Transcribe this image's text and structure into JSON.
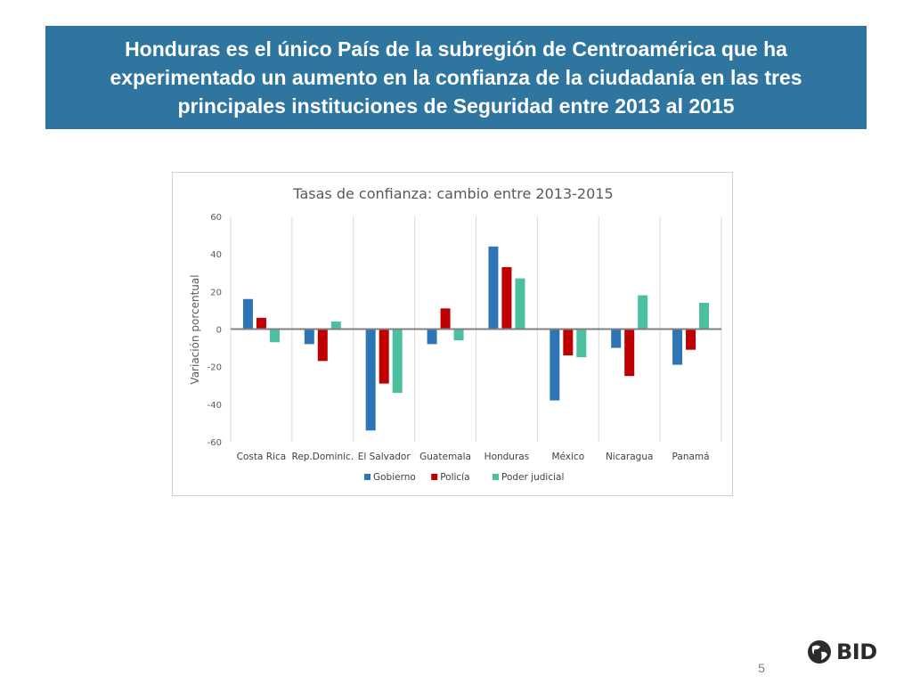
{
  "slide": {
    "title": "Honduras es el único País de la subregión de Centroamérica que ha experimentado un aumento en la confianza de la ciudadanía en las tres principales instituciones de Seguridad entre 2013 al 2015",
    "page_number": "5",
    "logo_text": "BID",
    "banner_color": "#2e75a0"
  },
  "chart_data": {
    "type": "bar",
    "title": "Tasas de confianza: cambio entre 2013-2015",
    "xlabel": "",
    "ylabel": "Variación porcentual",
    "ylim": [
      -60,
      60
    ],
    "yticks": [
      60,
      40,
      20,
      0,
      -20,
      -40,
      -60
    ],
    "grid": "vertical category separators",
    "legend": "bottom",
    "categories": [
      "Costa Rica",
      "Rep.Dominic.",
      "El Salvador",
      "Guatemala",
      "Honduras",
      "México",
      "Nicaragua",
      "Panamá"
    ],
    "series": [
      {
        "name": "Gobierno",
        "color": "#2e75b6",
        "values": [
          16,
          -8,
          -54,
          -8,
          44,
          -38,
          -10,
          -19
        ]
      },
      {
        "name": "Policía",
        "color": "#c00000",
        "values": [
          6,
          -17,
          -29,
          11,
          33,
          -14,
          -25,
          -11
        ]
      },
      {
        "name": "Poder judicial",
        "color": "#4bbfa0",
        "values": [
          -7,
          4,
          -34,
          -6,
          27,
          -15,
          18,
          14
        ]
      }
    ]
  }
}
